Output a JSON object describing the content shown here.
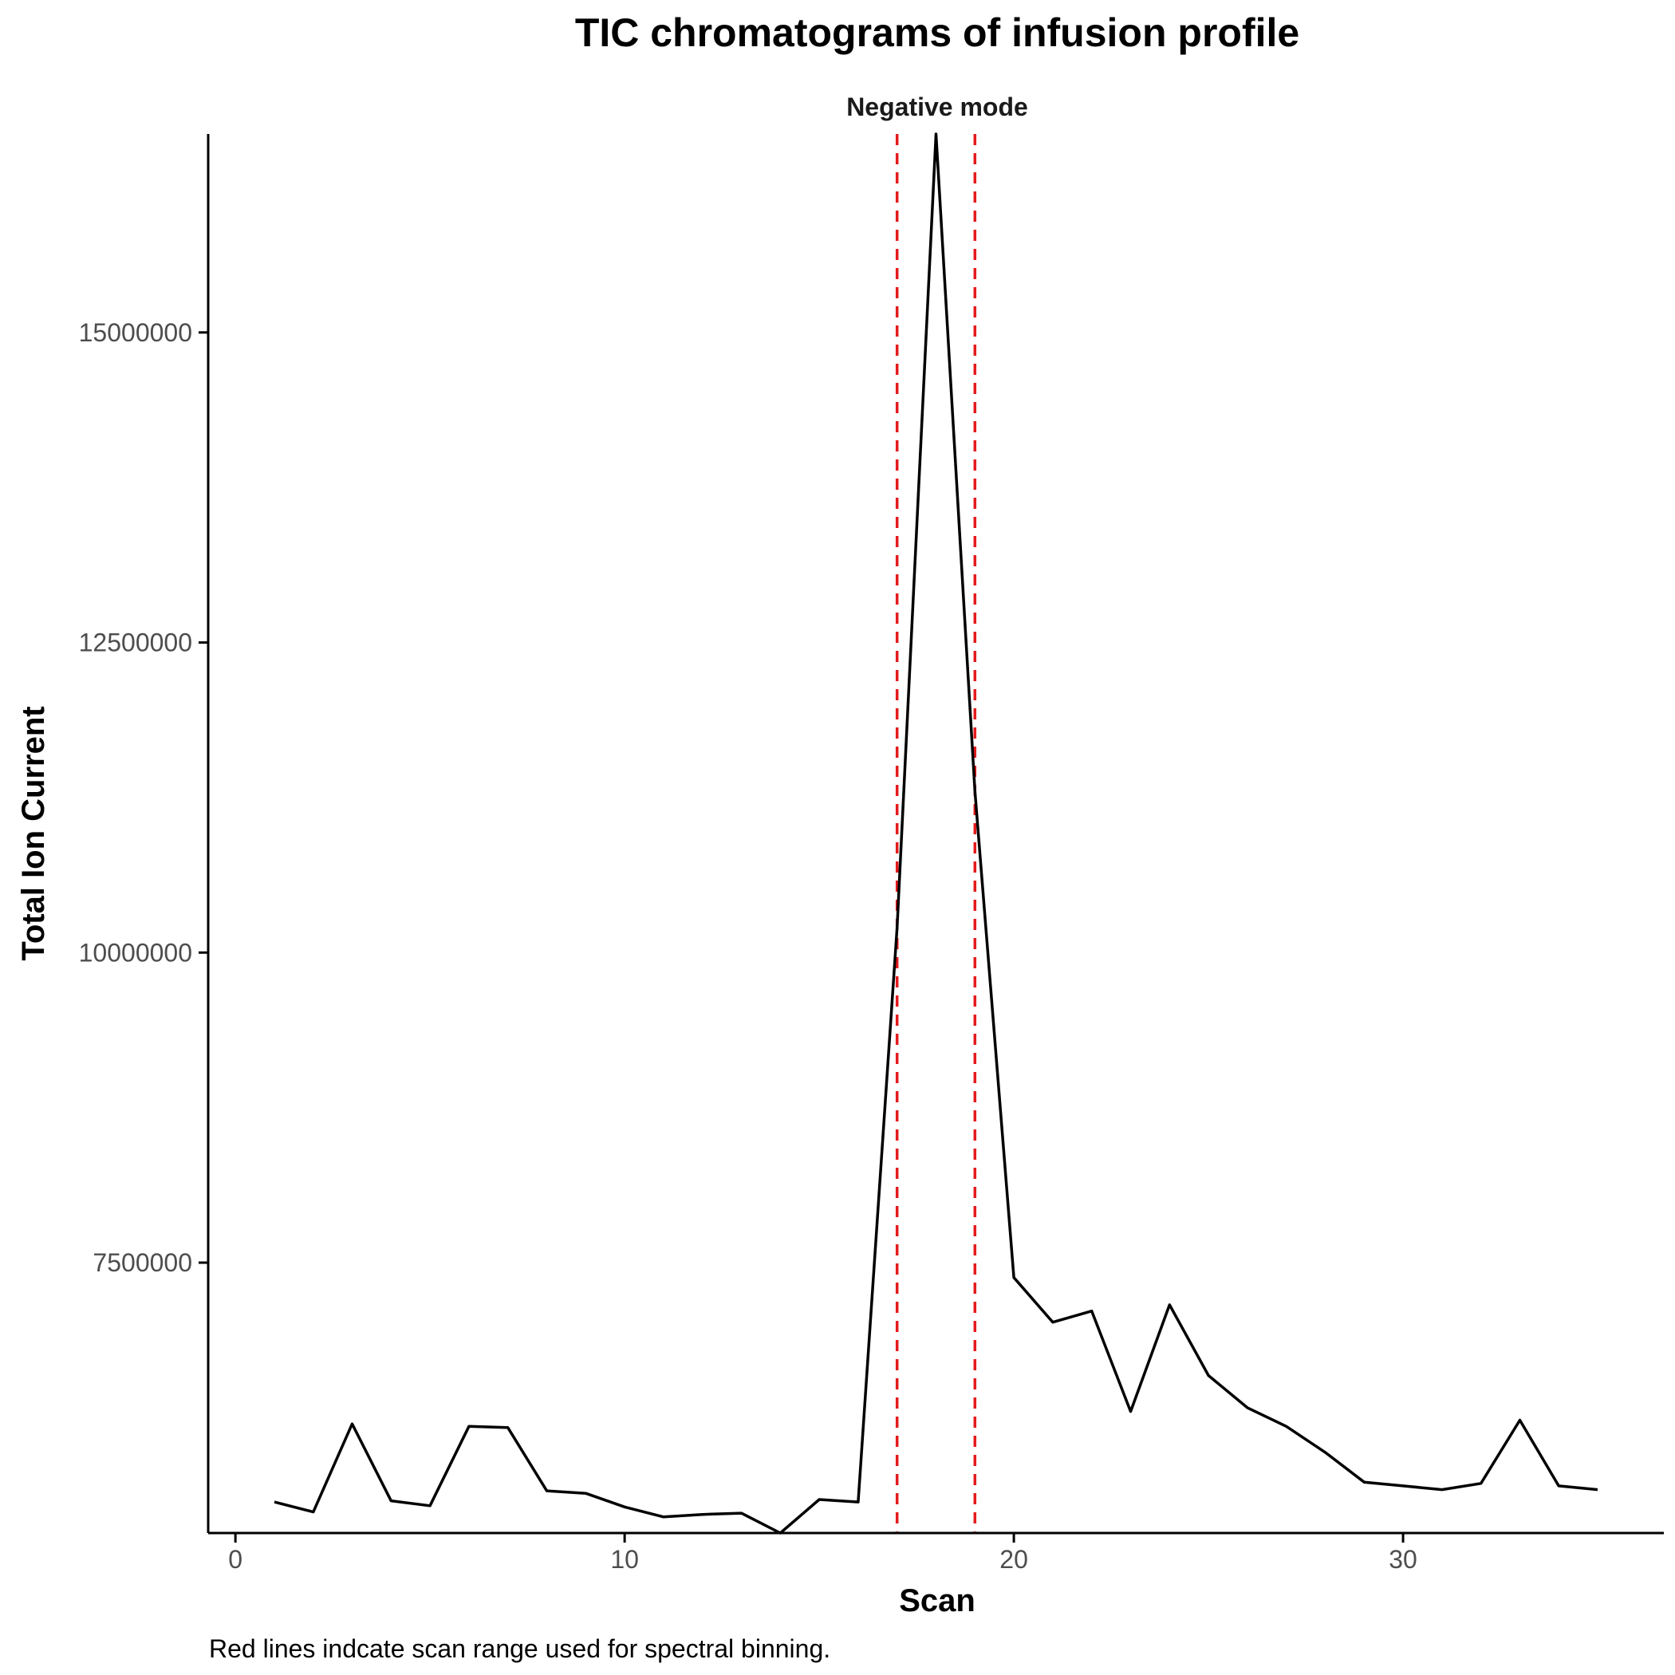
{
  "chart_data": {
    "type": "line",
    "title": "TIC chromatograms of infusion profile",
    "panel_label": "Negative mode",
    "xlabel": "Scan",
    "ylabel": "Total Ion Current",
    "caption": "Red lines indcate scan range used for spectral binning.",
    "xlim": [
      -0.7,
      36.7
    ],
    "ylim": [
      5320000,
      16600000
    ],
    "x_ticks": [
      0,
      10,
      20,
      30
    ],
    "y_ticks": [
      7500000,
      10000000,
      12500000,
      15000000
    ],
    "grid": false,
    "legend": "none",
    "series": [
      {
        "color": "#000000",
        "x": [
          1,
          2,
          3,
          4,
          5,
          6,
          7,
          8,
          9,
          10,
          11,
          12,
          13,
          14,
          15,
          16,
          17,
          18,
          19,
          20,
          21,
          22,
          23,
          24,
          25,
          26,
          27,
          28,
          29,
          30,
          31,
          32,
          33,
          34,
          35
        ],
        "y": [
          5570000,
          5490000,
          6200000,
          5580000,
          5540000,
          6180000,
          6170000,
          5660000,
          5640000,
          5530000,
          5450000,
          5470000,
          5480000,
          5320000,
          5590000,
          5570000,
          10200000,
          16600000,
          11300000,
          7380000,
          7020000,
          7110000,
          6300000,
          7160000,
          6590000,
          6330000,
          6180000,
          5970000,
          5730000,
          5700000,
          5670000,
          5720000,
          6230000,
          5700000,
          5670000
        ]
      }
    ],
    "reference_lines": {
      "orientation": "vertical",
      "x": [
        17,
        19
      ],
      "color": "#e41a1c",
      "style": "dashed"
    }
  }
}
